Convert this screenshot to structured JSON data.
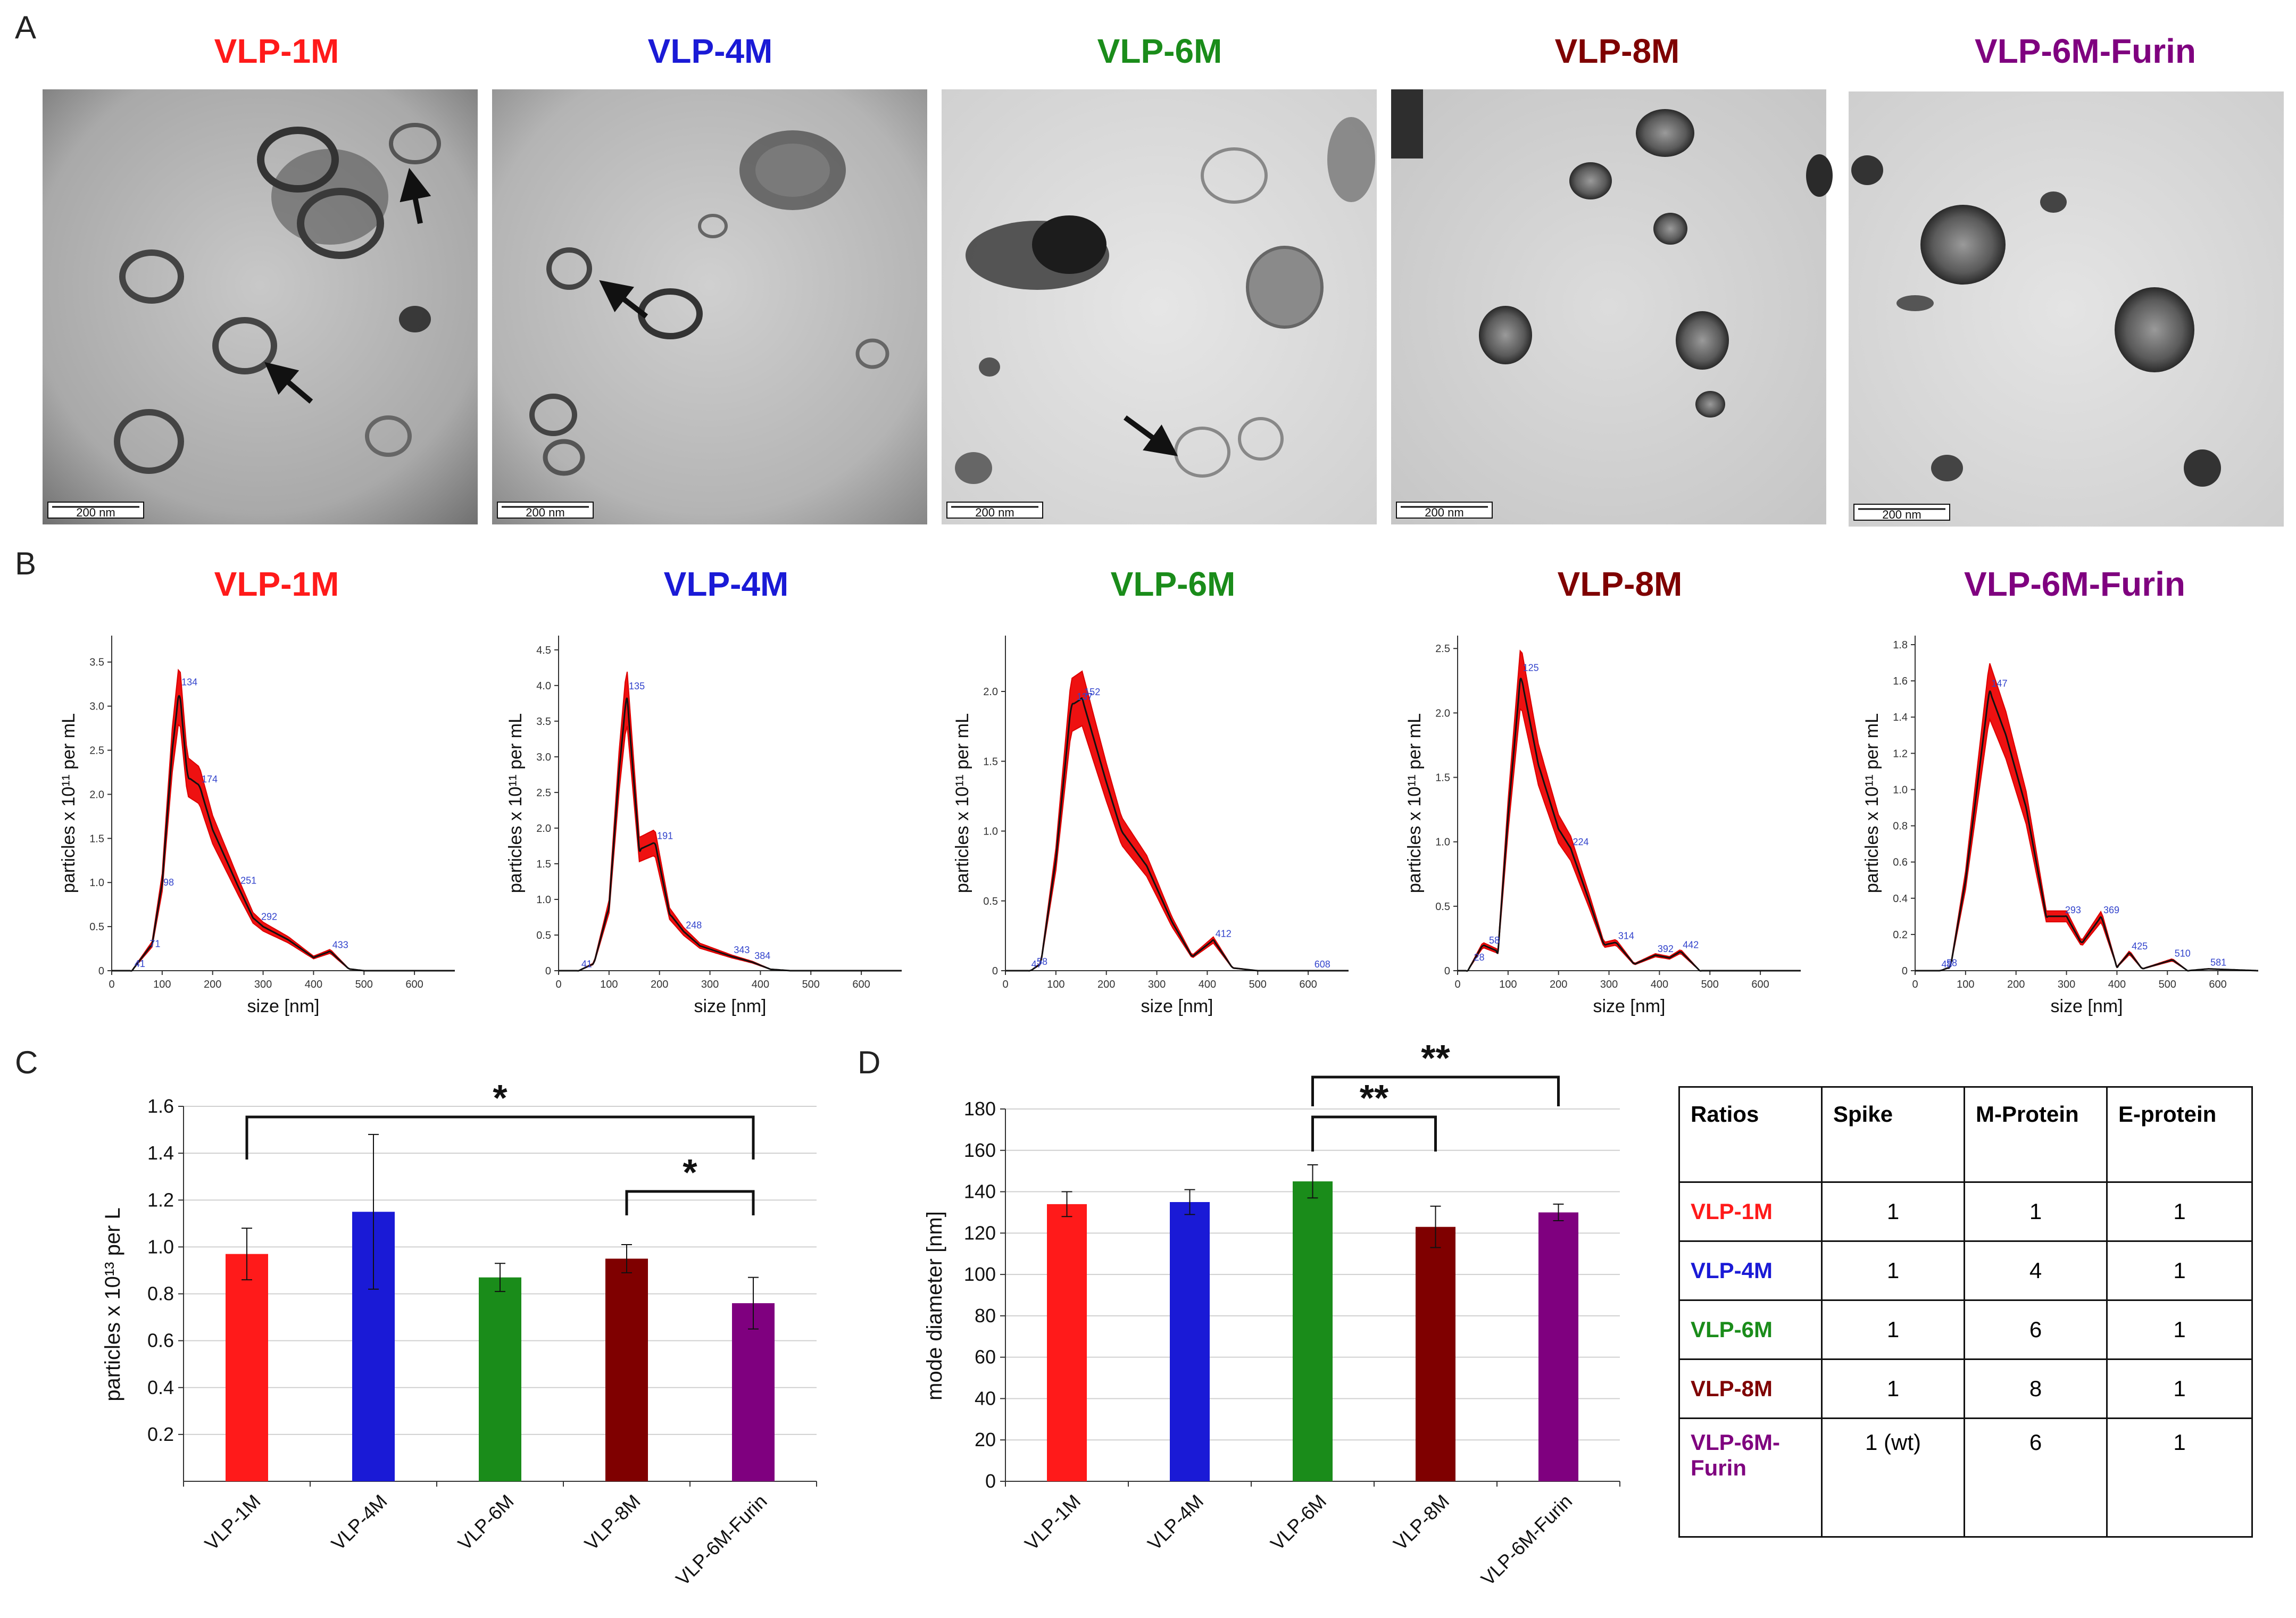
{
  "panels": {
    "A": "A",
    "B": "B",
    "C": "C",
    "D": "D"
  },
  "samples": [
    {
      "name": "VLP-1M",
      "color": "#ff1a1a"
    },
    {
      "name": "VLP-4M",
      "color": "#1a1ad6"
    },
    {
      "name": "VLP-6M",
      "color": "#1a8c1a"
    },
    {
      "name": "VLP-8M",
      "color": "#7f0000"
    },
    {
      "name": "VLP-6M-Furin",
      "color": "#7f007f"
    }
  ],
  "em": {
    "scale_bar_label": "200 nm"
  },
  "nta": {
    "xlabel": "size [nm]",
    "ylabel": "particles x 10¹¹ per mL",
    "x_ticks": [
      "0",
      "100",
      "200",
      "300",
      "400",
      "500",
      "600"
    ]
  },
  "chart_data": [
    {
      "type": "line",
      "title": "VLP-1M",
      "xlabel": "size [nm]",
      "ylabel": "particles x 10¹¹ per mL",
      "xlim": [
        0,
        680
      ],
      "ylim": [
        0,
        3.8
      ],
      "y_ticks": [
        "0",
        "0.5",
        "1.0",
        "1.5",
        "2.0",
        "2.5",
        "3.0",
        "3.5"
      ],
      "x": [
        0,
        40,
        60,
        80,
        100,
        120,
        134,
        150,
        174,
        200,
        251,
        280,
        300,
        350,
        400,
        433,
        470,
        500,
        680
      ],
      "y": [
        0,
        0,
        0.15,
        0.3,
        1.0,
        2.5,
        3.2,
        2.2,
        2.1,
        1.6,
        0.95,
        0.6,
        0.5,
        0.35,
        0.15,
        0.22,
        0.02,
        0,
        0
      ],
      "peak_labels": [
        "41",
        "71",
        "98",
        "134",
        "174",
        "251",
        "292",
        "433"
      ]
    },
    {
      "type": "line",
      "title": "VLP-4M",
      "xlabel": "size [nm]",
      "ylabel": "particles x 10¹¹ per mL",
      "xlim": [
        0,
        680
      ],
      "ylim": [
        0,
        4.7
      ],
      "y_ticks": [
        "0",
        "0.5",
        "1.0",
        "1.5",
        "2.0",
        "2.5",
        "3.0",
        "3.5",
        "4.0",
        "4.5"
      ],
      "x": [
        0,
        40,
        70,
        100,
        120,
        135,
        160,
        191,
        220,
        248,
        280,
        343,
        384,
        420,
        460,
        680
      ],
      "y": [
        0,
        0,
        0.1,
        0.9,
        2.8,
        3.9,
        1.7,
        1.8,
        0.8,
        0.55,
        0.35,
        0.2,
        0.12,
        0.02,
        0,
        0
      ],
      "peak_labels": [
        "41",
        "135",
        "191",
        "248",
        "343",
        "384"
      ]
    },
    {
      "type": "line",
      "title": "VLP-6M",
      "xlabel": "size [nm]",
      "ylabel": "particles x 10¹¹ per mL",
      "xlim": [
        0,
        680
      ],
      "ylim": [
        0,
        2.4
      ],
      "y_ticks": [
        "0",
        "0.5",
        "1.0",
        "1.5",
        "2.0"
      ],
      "x": [
        0,
        50,
        70,
        100,
        130,
        152,
        180,
        200,
        230,
        280,
        330,
        370,
        412,
        450,
        500,
        608,
        680
      ],
      "y": [
        0,
        0,
        0.05,
        0.8,
        1.9,
        1.95,
        1.6,
        1.35,
        1.0,
        0.75,
        0.35,
        0.1,
        0.22,
        0.02,
        0,
        0,
        0
      ],
      "peak_labels": [
        "47",
        "58",
        "137",
        "152",
        "412",
        "608"
      ]
    },
    {
      "type": "line",
      "title": "VLP-8M",
      "xlabel": "size [nm]",
      "ylabel": "particles x 10¹¹ per mL",
      "xlim": [
        0,
        680
      ],
      "ylim": [
        0,
        2.6
      ],
      "y_ticks": [
        "0",
        "0.5",
        "1.0",
        "1.5",
        "2.0",
        "2.5"
      ],
      "x": [
        0,
        20,
        50,
        80,
        100,
        125,
        160,
        200,
        224,
        260,
        290,
        314,
        350,
        392,
        420,
        442,
        480,
        680
      ],
      "y": [
        0,
        0,
        0.2,
        0.15,
        1.2,
        2.3,
        1.6,
        1.1,
        0.95,
        0.55,
        0.2,
        0.22,
        0.05,
        0.12,
        0.1,
        0.15,
        0,
        0
      ],
      "peak_labels": [
        "28",
        "58",
        "125",
        "224",
        "314",
        "392",
        "442"
      ]
    },
    {
      "type": "line",
      "title": "VLP-6M-Furin",
      "xlabel": "size [nm]",
      "ylabel": "particles x 10¹¹ per mL",
      "xlim": [
        0,
        680
      ],
      "ylim": [
        0,
        1.85
      ],
      "y_ticks": [
        "0",
        "0.2",
        "0.4",
        "0.6",
        "0.8",
        "1.0",
        "1.2",
        "1.4",
        "1.6",
        "1.8"
      ],
      "x": [
        0,
        50,
        70,
        100,
        147,
        180,
        220,
        260,
        300,
        330,
        369,
        400,
        425,
        450,
        510,
        540,
        581,
        680
      ],
      "y": [
        0,
        0,
        0.02,
        0.5,
        1.55,
        1.3,
        0.9,
        0.3,
        0.3,
        0.15,
        0.3,
        0.02,
        0.1,
        0.01,
        0.06,
        0,
        0.01,
        0
      ],
      "peak_labels": [
        "48",
        "58",
        "147",
        "293",
        "369",
        "425",
        "510",
        "581"
      ]
    },
    {
      "type": "bar",
      "categories": [
        "VLP-1M",
        "VLP-4M",
        "VLP-6M",
        "VLP-8M",
        "VLP-6M-Furin"
      ],
      "values": [
        0.97,
        1.15,
        0.87,
        0.95,
        0.76
      ],
      "errors": [
        0.11,
        0.33,
        0.06,
        0.06,
        0.11
      ],
      "ylabel": "particles x 10¹³ per L",
      "ylim": [
        0,
        1.6
      ],
      "y_ticks": [
        "0.2",
        "0.4",
        "0.6",
        "0.8",
        "1.0",
        "1.2",
        "1.4",
        "1.6"
      ],
      "significance": [
        {
          "from": "VLP-1M",
          "to": "VLP-6M-Furin",
          "label": "*"
        },
        {
          "from": "VLP-8M",
          "to": "VLP-6M-Furin",
          "label": "*"
        }
      ]
    },
    {
      "type": "bar",
      "categories": [
        "VLP-1M",
        "VLP-4M",
        "VLP-6M",
        "VLP-8M",
        "VLP-6M-Furin"
      ],
      "values": [
        134,
        135,
        145,
        123,
        130
      ],
      "errors": [
        6,
        6,
        8,
        10,
        4
      ],
      "ylabel": "mode diameter [nm]",
      "ylim": [
        0,
        180
      ],
      "y_ticks": [
        "0",
        "20",
        "40",
        "60",
        "80",
        "100",
        "120",
        "140",
        "160",
        "180"
      ],
      "significance": [
        {
          "from": "VLP-6M",
          "to": "VLP-8M",
          "label": "**"
        },
        {
          "from": "VLP-6M",
          "to": "VLP-6M-Furin",
          "label": "**"
        }
      ]
    }
  ],
  "ratios_table": {
    "headers": [
      "Ratios",
      "Spike",
      "M-Protein",
      "E-protein"
    ],
    "rows": [
      {
        "name": "VLP-1M",
        "spike": "1",
        "m": "1",
        "e": "1"
      },
      {
        "name": "VLP-4M",
        "spike": "1",
        "m": "4",
        "e": "1"
      },
      {
        "name": "VLP-6M",
        "spike": "1",
        "m": "6",
        "e": "1"
      },
      {
        "name": "VLP-8M",
        "spike": "1",
        "m": "8",
        "e": "1"
      },
      {
        "name": "VLP-6M-Furin",
        "spike": "1 (wt)",
        "m": "6",
        "e": "1"
      }
    ]
  }
}
